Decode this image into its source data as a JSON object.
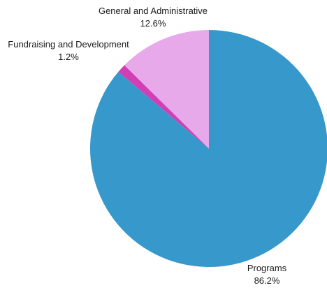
{
  "chart_data": {
    "type": "pie",
    "title": "",
    "slices": [
      {
        "label": "Programs",
        "value": 86.2,
        "value_label": "86.2%",
        "color": "#3798cc"
      },
      {
        "label": "Fundraising and Development",
        "value": 1.2,
        "value_label": "1.2%",
        "color": "#d03fb4"
      },
      {
        "label": "General and Administrative",
        "value": 12.6,
        "value_label": "12.6%",
        "color": "#e8a9ea"
      }
    ],
    "start_angle_deg": 0,
    "direction": "clockwise",
    "legend": "none",
    "labels": "outside"
  }
}
